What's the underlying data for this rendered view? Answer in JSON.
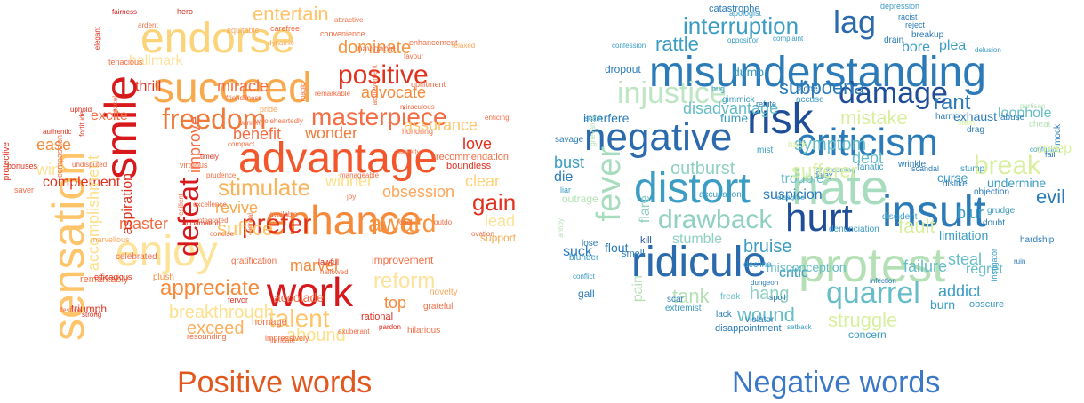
{
  "captions": {
    "positive": "Positive words",
    "negative": "Negative words"
  },
  "colors": {
    "positive_caption": "#e2571d",
    "negative_caption": "#3a78c8"
  },
  "positive_cloud": {
    "palette": [
      "#d7191c",
      "#e0301e",
      "#f46d43",
      "#fca65a",
      "#fdc46a",
      "#fee08b",
      "#f6c94f"
    ],
    "words": [
      {
        "text": "advantage",
        "color": "#f2562a"
      },
      {
        "text": "enhance",
        "color": "#f68a3a"
      },
      {
        "text": "succeed",
        "color": "#f9a94d"
      },
      {
        "text": "endorse",
        "color": "#fdd37a"
      },
      {
        "text": "enjoy",
        "color": "#fde29a"
      },
      {
        "text": "sensation",
        "color": "#fdc46a"
      },
      {
        "text": "smile",
        "color": "#d7191c"
      },
      {
        "text": "work",
        "color": "#d7191c"
      },
      {
        "text": "freedom",
        "color": "#f07a3a"
      },
      {
        "text": "masterpiece",
        "color": "#f46d43"
      },
      {
        "text": "positive",
        "color": "#e0301e"
      },
      {
        "text": "prefer",
        "color": "#e0301e"
      },
      {
        "text": "award",
        "color": "#f7943d"
      },
      {
        "text": "stimulate",
        "color": "#f9b35a"
      },
      {
        "text": "defeat",
        "color": "#d7191c"
      },
      {
        "text": "gain",
        "color": "#e0301e"
      },
      {
        "text": "appreciate",
        "color": "#f68a3a"
      },
      {
        "text": "talent",
        "color": "#fdc46a"
      },
      {
        "text": "reform",
        "color": "#fde29a"
      },
      {
        "text": "breakthrough",
        "color": "#fee08b"
      },
      {
        "text": "exceed",
        "color": "#fcae5c"
      },
      {
        "text": "abound",
        "color": "#fee08b"
      },
      {
        "text": "entertain",
        "color": "#fdc46a"
      },
      {
        "text": "dominate",
        "color": "#f7943d"
      },
      {
        "text": "advocate",
        "color": "#f68a3a"
      },
      {
        "text": "miracle",
        "color": "#f46d43"
      },
      {
        "text": "benefit",
        "color": "#f46d43"
      },
      {
        "text": "wonder",
        "color": "#f07a3a"
      },
      {
        "text": "assurance",
        "color": "#fdc46a"
      },
      {
        "text": "love",
        "color": "#e0301e"
      },
      {
        "text": "clear",
        "color": "#fdd37a"
      },
      {
        "text": "lead",
        "color": "#fde29a"
      },
      {
        "text": "obsession",
        "color": "#fca65a"
      },
      {
        "text": "winner",
        "color": "#fee08b"
      },
      {
        "text": "revive",
        "color": "#f9a94d"
      },
      {
        "text": "suffice",
        "color": "#fdc46a"
      },
      {
        "text": "marvel",
        "color": "#f68a3a"
      },
      {
        "text": "master",
        "color": "#f46d43"
      },
      {
        "text": "aspiration",
        "color": "#e0301e"
      },
      {
        "text": "improve",
        "color": "#f46d43"
      },
      {
        "text": "complement",
        "color": "#e0301e"
      },
      {
        "text": "accomplishment",
        "color": "#fee08b"
      },
      {
        "text": "ease",
        "color": "#f68a3a"
      },
      {
        "text": "win",
        "color": "#fde29a"
      },
      {
        "text": "excite",
        "color": "#f46d43"
      },
      {
        "text": "thrill",
        "color": "#e0301e"
      },
      {
        "text": "hallmark",
        "color": "#fde29a"
      },
      {
        "text": "top",
        "color": "#f68a3a"
      },
      {
        "text": "accolade",
        "color": "#f46d43"
      },
      {
        "text": "improvement",
        "color": "#f46d43"
      },
      {
        "text": "support",
        "color": "#f9a94d"
      },
      {
        "text": "recommendation",
        "color": "#f46d43"
      },
      {
        "text": "boundless",
        "color": "#e0301e"
      },
      {
        "text": "homage",
        "color": "#f46d43"
      },
      {
        "text": "rational",
        "color": "#e0301e"
      },
      {
        "text": "hilarious",
        "color": "#f46d43"
      },
      {
        "text": "novelty",
        "color": "#fca65a"
      },
      {
        "text": "grateful",
        "color": "#f46d43"
      },
      {
        "text": "marvellous",
        "color": "#fca65a"
      },
      {
        "text": "celebrated",
        "color": "#f46d43"
      },
      {
        "text": "remarkably",
        "color": "#f46d43"
      },
      {
        "text": "triumph",
        "color": "#e0301e"
      },
      {
        "text": "fervor",
        "color": "#e0301e"
      },
      {
        "text": "gratification",
        "color": "#f46d43"
      },
      {
        "text": "resounding",
        "color": "#f46d43"
      },
      {
        "text": "impressively",
        "color": "#f46d43"
      },
      {
        "text": "plush",
        "color": "#f68a3a"
      },
      {
        "text": "undisputed",
        "color": "#f46d43"
      },
      {
        "text": "uphold",
        "color": "#e0301e"
      },
      {
        "text": "fortitude",
        "color": "#e0301e"
      },
      {
        "text": "compassion",
        "color": "#f46d43"
      },
      {
        "text": "authentic",
        "color": "#e0301e"
      },
      {
        "text": "tenacious",
        "color": "#f46d43"
      },
      {
        "text": "fairness",
        "color": "#d7191c"
      },
      {
        "text": "hero",
        "color": "#e0301e"
      },
      {
        "text": "equitable",
        "color": "#fca65a"
      },
      {
        "text": "carefree",
        "color": "#f46d43"
      },
      {
        "text": "dynamic",
        "color": "#fca65a"
      },
      {
        "text": "attractive",
        "color": "#f46d43"
      },
      {
        "text": "convenience",
        "color": "#f46d43"
      },
      {
        "text": "enhancement",
        "color": "#f46d43"
      },
      {
        "text": "relaxed",
        "color": "#fca65a"
      },
      {
        "text": "navigable",
        "color": "#f46d43"
      },
      {
        "text": "magic",
        "color": "#f46d43"
      },
      {
        "text": "favour",
        "color": "#f46d43"
      },
      {
        "text": "achievement",
        "color": "#f46d43"
      },
      {
        "text": "honoring",
        "color": "#f46d43"
      },
      {
        "text": "miraculous",
        "color": "#f46d43"
      },
      {
        "text": "pride",
        "color": "#fca65a"
      },
      {
        "text": "winning",
        "color": "#f46d43"
      },
      {
        "text": "remarkable",
        "color": "#f46d43"
      },
      {
        "text": "friendliness",
        "color": "#f46d43"
      },
      {
        "text": "compact",
        "color": "#f46d43"
      },
      {
        "text": "upliftment",
        "color": "#f46d43"
      },
      {
        "text": "virtuous",
        "color": "#f46d43"
      },
      {
        "text": "prudence",
        "color": "#f46d43"
      },
      {
        "text": "sweetly",
        "color": "#f46d43"
      },
      {
        "text": "joy",
        "color": "#f46d43"
      },
      {
        "text": "cool",
        "color": "#f46d43"
      },
      {
        "text": "outdo",
        "color": "#f46d43"
      },
      {
        "text": "excellence",
        "color": "#f46d43"
      },
      {
        "text": "acclamation",
        "color": "#e0301e"
      },
      {
        "text": "resilient",
        "color": "#f46d43"
      },
      {
        "text": "concise",
        "color": "#f46d43"
      },
      {
        "text": "hallowed",
        "color": "#f46d43"
      },
      {
        "text": "lawful",
        "color": "#e0301e"
      },
      {
        "text": "ovation",
        "color": "#f46d43"
      },
      {
        "text": "enticing",
        "color": "#f46d43"
      },
      {
        "text": "protective",
        "color": "#e0301e"
      },
      {
        "text": "bonuses",
        "color": "#e0301e"
      },
      {
        "text": "saver",
        "color": "#f46d43"
      },
      {
        "text": "festive",
        "color": "#f46d43"
      },
      {
        "text": "strong",
        "color": "#e0301e"
      },
      {
        "text": "efficacious",
        "color": "#e0301e"
      },
      {
        "text": "intricate",
        "color": "#f46d43"
      },
      {
        "text": "pardon",
        "color": "#e0301e"
      },
      {
        "text": "exuberant",
        "color": "#f46d43"
      },
      {
        "text": "unreal",
        "color": "#f46d43"
      },
      {
        "text": "excel",
        "color": "#f46d43"
      },
      {
        "text": "elegant",
        "color": "#e0301e"
      },
      {
        "text": "ardent",
        "color": "#f46d43"
      },
      {
        "text": "available",
        "color": "#f46d43"
      },
      {
        "text": "timely",
        "color": "#e0301e"
      },
      {
        "text": "manageable",
        "color": "#f46d43"
      },
      {
        "text": "integrated",
        "color": "#f46d43"
      },
      {
        "text": "wholeheartedly",
        "color": "#f46d43"
      }
    ]
  },
  "negative_cloud": {
    "palette": [
      "#1f4e99",
      "#2b7bb9",
      "#3b9cc4",
      "#66bdc7",
      "#8fd0c0",
      "#b5e0b5",
      "#d9ef9f",
      "#edf7a8"
    ],
    "words": [
      {
        "text": "misunderstanding",
        "color": "#2b7bb9"
      },
      {
        "text": "risk",
        "color": "#1f4e99"
      },
      {
        "text": "negative",
        "color": "#2b6aad"
      },
      {
        "text": "criticism",
        "color": "#2b7bb9"
      },
      {
        "text": "hate",
        "color": "#a8dcbf"
      },
      {
        "text": "protest",
        "color": "#b5e0b5"
      },
      {
        "text": "ridicule",
        "color": "#2b6aad"
      },
      {
        "text": "insult",
        "color": "#2b7bb9"
      },
      {
        "text": "distort",
        "color": "#3b9cc4"
      },
      {
        "text": "hurt",
        "color": "#1f4e99"
      },
      {
        "text": "damage",
        "color": "#1f4e99"
      },
      {
        "text": "injustice",
        "color": "#bfe6c4"
      },
      {
        "text": "lag",
        "color": "#2b6aad"
      },
      {
        "text": "interruption",
        "color": "#3b9cc4"
      },
      {
        "text": "rattle",
        "color": "#3b9cc4"
      },
      {
        "text": "subpoena",
        "color": "#2b7bb9"
      },
      {
        "text": "drawback",
        "color": "#8fd0c0"
      },
      {
        "text": "fever",
        "color": "#a8dcbf"
      },
      {
        "text": "quarrel",
        "color": "#66bdc7"
      },
      {
        "text": "break",
        "color": "#d9ef9f"
      },
      {
        "text": "rant",
        "color": "#2b7bb9"
      },
      {
        "text": "mistake",
        "color": "#d9ef9f"
      },
      {
        "text": "symptom",
        "color": "#66bdc7"
      },
      {
        "text": "outburst",
        "color": "#8fd0c0"
      },
      {
        "text": "debt",
        "color": "#66bdc7"
      },
      {
        "text": "bust",
        "color": "#3b9cc4"
      },
      {
        "text": "die",
        "color": "#2b7bb9"
      },
      {
        "text": "evil",
        "color": "#2b7bb9"
      },
      {
        "text": "blur",
        "color": "#3b9cc4"
      },
      {
        "text": "fault",
        "color": "#d9ef9f"
      },
      {
        "text": "steal",
        "color": "#66bdc7"
      },
      {
        "text": "addict",
        "color": "#3b9cc4"
      },
      {
        "text": "struggle",
        "color": "#d9ef9f"
      },
      {
        "text": "wound",
        "color": "#66bdc7"
      },
      {
        "text": "hang",
        "color": "#8fd0c0"
      },
      {
        "text": "tank",
        "color": "#b5e0b5"
      },
      {
        "text": "bruise",
        "color": "#3b9cc4"
      },
      {
        "text": "critic",
        "color": "#3b9cc4"
      },
      {
        "text": "failure",
        "color": "#66bdc7"
      },
      {
        "text": "limitation",
        "color": "#3b9cc4"
      },
      {
        "text": "regret",
        "color": "#66bdc7"
      },
      {
        "text": "suspicion",
        "color": "#2b7bb9"
      },
      {
        "text": "trouble",
        "color": "#66bdc7"
      },
      {
        "text": "curse",
        "color": "#3b9cc4"
      },
      {
        "text": "interfere",
        "color": "#2b7bb9"
      },
      {
        "text": "exhaust",
        "color": "#2b7bb9"
      },
      {
        "text": "loophole",
        "color": "#66bdc7"
      },
      {
        "text": "undermine",
        "color": "#3b9cc4"
      },
      {
        "text": "stumble",
        "color": "#8fd0c0"
      },
      {
        "text": "misconception",
        "color": "#66bdc7"
      },
      {
        "text": "burn",
        "color": "#3b9cc4"
      },
      {
        "text": "concern",
        "color": "#3b9cc4"
      },
      {
        "text": "suck",
        "color": "#2b7bb9"
      },
      {
        "text": "flare",
        "color": "#8fd0c0"
      },
      {
        "text": "flout",
        "color": "#2b7bb9"
      },
      {
        "text": "pain",
        "color": "#b5e0b5"
      },
      {
        "text": "dump",
        "color": "#3b9cc4"
      },
      {
        "text": "bore",
        "color": "#3b9cc4"
      },
      {
        "text": "plea",
        "color": "#3b9cc4"
      },
      {
        "text": "catastrophe",
        "color": "#2b7bb9"
      },
      {
        "text": "fume",
        "color": "#3b9cc4"
      },
      {
        "text": "disadvantage",
        "color": "#66bdc7"
      },
      {
        "text": "dropout",
        "color": "#2b7bb9"
      },
      {
        "text": "savage",
        "color": "#2b7bb9"
      },
      {
        "text": "scam",
        "color": "#3b9cc4"
      },
      {
        "text": "gall",
        "color": "#2b7bb9"
      },
      {
        "text": "lose",
        "color": "#2b7bb9"
      },
      {
        "text": "blunder",
        "color": "#3b9cc4"
      },
      {
        "text": "conflict",
        "color": "#3b9cc4"
      },
      {
        "text": "smell",
        "color": "#2b7bb9"
      },
      {
        "text": "kill",
        "color": "#1f4e99"
      },
      {
        "text": "lack",
        "color": "#2b7bb9"
      },
      {
        "text": "freak",
        "color": "#66bdc7"
      },
      {
        "text": "scar",
        "color": "#2b7bb9"
      },
      {
        "text": "extremist",
        "color": "#3b9cc4"
      },
      {
        "text": "disappointment",
        "color": "#2b7bb9"
      },
      {
        "text": "violator",
        "color": "#2b7bb9"
      },
      {
        "text": "setback",
        "color": "#3b9cc4"
      },
      {
        "text": "obscure",
        "color": "#3b9cc4"
      },
      {
        "text": "instigator",
        "color": "#3b9cc4"
      },
      {
        "text": "hardship",
        "color": "#2b7bb9"
      },
      {
        "text": "decline",
        "color": "#3b9cc4"
      },
      {
        "text": "spoil",
        "color": "#2b7bb9"
      },
      {
        "text": "dungeon",
        "color": "#2b7bb9"
      },
      {
        "text": "infection",
        "color": "#2b7bb9"
      },
      {
        "text": "dissident",
        "color": "#3b9cc4"
      },
      {
        "text": "denunciation",
        "color": "#3b9cc4"
      },
      {
        "text": "doubt",
        "color": "#2b7bb9"
      },
      {
        "text": "dislike",
        "color": "#2b7bb9"
      },
      {
        "text": "objection",
        "color": "#2b7bb9"
      },
      {
        "text": "grudge",
        "color": "#3b9cc4"
      },
      {
        "text": "stump",
        "color": "#3b9cc4"
      },
      {
        "text": "wrinkle",
        "color": "#2b7bb9"
      },
      {
        "text": "scandal",
        "color": "#2b7bb9"
      },
      {
        "text": "fanatic",
        "color": "#3b9cc4"
      },
      {
        "text": "delay",
        "color": "#2b7bb9"
      },
      {
        "text": "mist",
        "color": "#3b9cc4"
      },
      {
        "text": "accusation",
        "color": "#3b9cc4"
      },
      {
        "text": "drain",
        "color": "#2b7bb9"
      },
      {
        "text": "breakup",
        "color": "#2b7bb9"
      },
      {
        "text": "reject",
        "color": "#2b7bb9"
      },
      {
        "text": "depression",
        "color": "#3b9cc4"
      },
      {
        "text": "apologist",
        "color": "#3b9cc4"
      },
      {
        "text": "racist",
        "color": "#2b7bb9"
      },
      {
        "text": "harm",
        "color": "#2b7bb9"
      },
      {
        "text": "abuse",
        "color": "#2b7bb9"
      },
      {
        "text": "cheat",
        "color": "#b5e0b5"
      },
      {
        "text": "mock",
        "color": "#2b7bb9"
      },
      {
        "text": "drag",
        "color": "#2b7bb9"
      },
      {
        "text": "stain",
        "color": "#d9ef9f"
      },
      {
        "text": "ache",
        "color": "#2b7bb9"
      },
      {
        "text": "accuse",
        "color": "#3b9cc4"
      },
      {
        "text": "refute",
        "color": "#2b7bb9"
      },
      {
        "text": "gimmick",
        "color": "#3b9cc4"
      },
      {
        "text": "bug",
        "color": "#3b9cc4"
      },
      {
        "text": "confession",
        "color": "#3b9cc4"
      },
      {
        "text": "opposition",
        "color": "#3b9cc4"
      },
      {
        "text": "complaint",
        "color": "#3b9cc4"
      },
      {
        "text": "delusion",
        "color": "#3b9cc4"
      },
      {
        "text": "partisan",
        "color": "#b5e0b5"
      },
      {
        "text": "confusion",
        "color": "#3b9cc4"
      },
      {
        "text": "fail",
        "color": "#2b7bb9"
      },
      {
        "text": "ruin",
        "color": "#2b7bb9"
      },
      {
        "text": "disagree",
        "color": "#3b9cc4"
      },
      {
        "text": "shortcoming",
        "color": "#3b9cc4"
      },
      {
        "text": "back",
        "color": "#d9ef9f"
      },
      {
        "text": "sufferer",
        "color": "#d9ef9f"
      },
      {
        "text": "outrage",
        "color": "#b5e0b5"
      },
      {
        "text": "liar",
        "color": "#3b9cc4"
      },
      {
        "text": "annoy",
        "color": "#b5e0b5"
      },
      {
        "text": "grievance",
        "color": "#b5e0b5"
      },
      {
        "text": "creep",
        "color": "#d9ef9f"
      }
    ]
  }
}
